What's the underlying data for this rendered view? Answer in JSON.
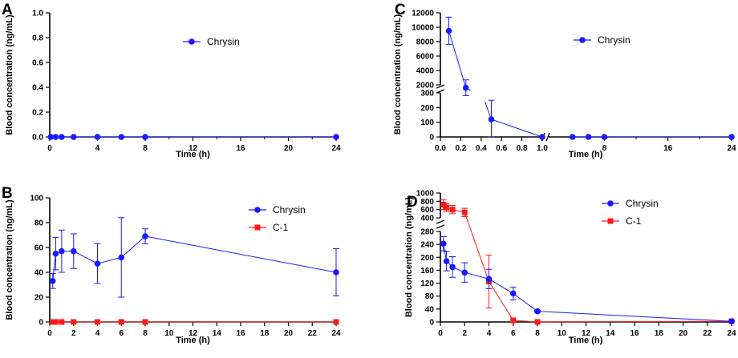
{
  "colors": {
    "chrysin": "#1a1aff",
    "c1": "#ff1a1a",
    "axis": "#000000"
  },
  "chart_data": [
    {
      "panel": "A",
      "type": "line",
      "xlabel": "Time (h)",
      "ylabel": "Blood concentration (ng/mL)",
      "xlim": [
        0,
        24
      ],
      "ylim": [
        0,
        1.0
      ],
      "xticks": [
        "0",
        "4",
        "8",
        "12",
        "16",
        "20",
        "24"
      ],
      "yticks": [
        "0.0",
        "0.2",
        "0.4",
        "0.6",
        "0.8",
        "1.0"
      ],
      "series": [
        {
          "name": "Chrysin",
          "color": "#1a1aff",
          "marker": "circle",
          "x": [
            0.083,
            0.5,
            1,
            2,
            4,
            6,
            8,
            24
          ],
          "y": [
            0,
            0,
            0,
            0,
            0,
            0,
            0,
            0
          ]
        }
      ],
      "legend": "top-center"
    },
    {
      "panel": "B",
      "type": "line",
      "xlabel": "Time (h)",
      "ylabel": "Blood concentration (ng/mL)",
      "xlim": [
        0,
        24
      ],
      "ylim": [
        0,
        100
      ],
      "xticks": [
        "0",
        "2",
        "4",
        "6",
        "8",
        "10",
        "12",
        "14",
        "16",
        "18",
        "20",
        "22",
        "24"
      ],
      "yticks": [
        "0",
        "20",
        "40",
        "60",
        "80",
        "100"
      ],
      "series": [
        {
          "name": "Chrysin",
          "color": "#1a1aff",
          "marker": "circle",
          "x": [
            0.25,
            0.5,
            1,
            2,
            4,
            6,
            8,
            24
          ],
          "y": [
            33,
            55,
            57,
            57,
            47,
            52,
            69,
            40
          ],
          "err": [
            6,
            13,
            17,
            14,
            16,
            32,
            6,
            19
          ]
        },
        {
          "name": "C-1",
          "color": "#ff1a1a",
          "marker": "square",
          "x": [
            0.25,
            0.5,
            1,
            2,
            4,
            6,
            8,
            24
          ],
          "y": [
            0,
            0,
            0,
            0,
            0,
            0,
            0,
            0
          ]
        }
      ],
      "legend": "top-right"
    },
    {
      "panel": "C",
      "type": "line",
      "xlabel": "Time (h)",
      "ylabel": "Blood concentration (ng/mL)",
      "broken_x": {
        "left": [
          0,
          1.0
        ],
        "right": [
          1,
          24
        ]
      },
      "broken_y": {
        "lower": [
          0,
          300
        ],
        "upper": [
          2000,
          12000
        ]
      },
      "xticks_left": [
        "0.0",
        "0.2",
        "0.4",
        "0.6",
        "0.8",
        "1.0"
      ],
      "xticks_right": [
        "8",
        "16",
        "24"
      ],
      "yticks_lower": [
        "0",
        "100",
        "200",
        "300"
      ],
      "yticks_upper": [
        "2000",
        "4000",
        "6000",
        "8000",
        "10000",
        "12000"
      ],
      "series": [
        {
          "name": "Chrysin",
          "color": "#1a1aff",
          "marker": "circle",
          "x": [
            0.083,
            0.25,
            0.5,
            1,
            4,
            6,
            8,
            24
          ],
          "y": [
            9500,
            1600,
            120,
            0,
            0,
            0,
            0,
            0
          ],
          "err": [
            1900,
            1100,
            130,
            0,
            0,
            0,
            0,
            0
          ]
        }
      ],
      "legend": "top-right"
    },
    {
      "panel": "D",
      "type": "line",
      "xlabel": "Time (h)",
      "ylabel": "Blood concentration (ng/mL)",
      "xlim": [
        0,
        24
      ],
      "broken_y": {
        "lower": [
          0,
          280
        ],
        "upper": [
          400,
          1000
        ]
      },
      "xticks": [
        "0",
        "2",
        "4",
        "6",
        "8",
        "10",
        "12",
        "14",
        "16",
        "18",
        "20",
        "22",
        "24"
      ],
      "yticks_lower": [
        "0",
        "40",
        "80",
        "120",
        "160",
        "200",
        "240",
        "280"
      ],
      "yticks_upper": [
        "400",
        "600",
        "800",
        "1000"
      ],
      "series": [
        {
          "name": "Chrysin",
          "color": "#1a1aff",
          "marker": "circle",
          "x": [
            0.25,
            0.5,
            1,
            2,
            4,
            6,
            8,
            24
          ],
          "y": [
            242,
            188,
            170,
            153,
            133,
            88,
            33,
            2
          ],
          "err": [
            22,
            30,
            32,
            30,
            30,
            20,
            3,
            2
          ]
        },
        {
          "name": "C-1",
          "color": "#ff1a1a",
          "marker": "square",
          "x": [
            0.25,
            0.5,
            1,
            2,
            4,
            6,
            8,
            24
          ],
          "y": [
            720,
            650,
            600,
            530,
            125,
            5,
            0,
            2
          ],
          "err": [
            120,
            100,
            100,
            100,
            82,
            0,
            0,
            0
          ]
        }
      ],
      "legend": "top-right"
    }
  ]
}
